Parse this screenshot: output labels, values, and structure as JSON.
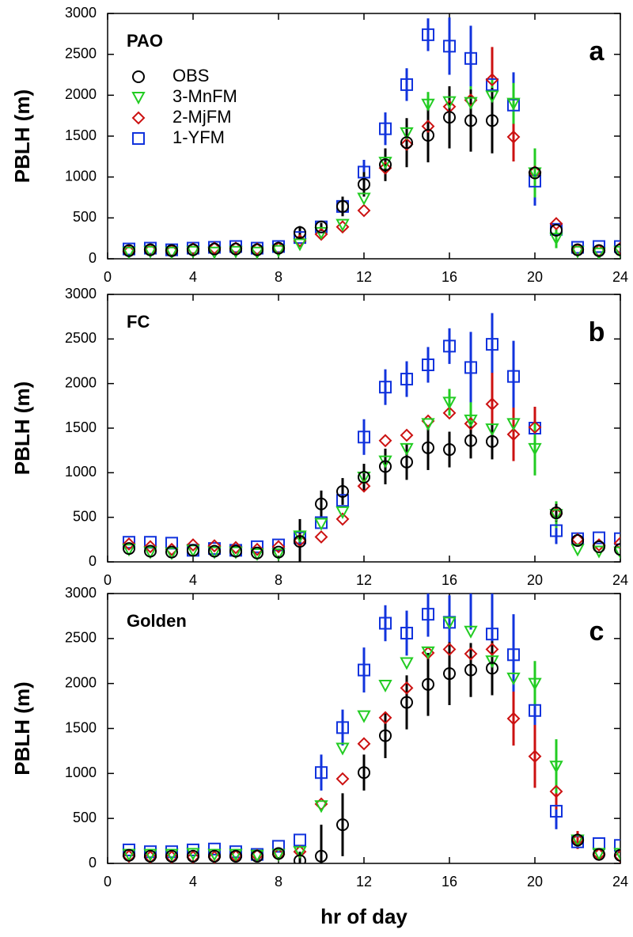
{
  "chart_data": [
    {
      "type": "scatter",
      "title": "PAO",
      "panel_label": "a",
      "y_label": "PBLH (m)",
      "legend": "upper left",
      "x": [
        1,
        2,
        3,
        4,
        5,
        6,
        7,
        8,
        9,
        10,
        11,
        12,
        13,
        14,
        15,
        16,
        17,
        18,
        19,
        20,
        21,
        22,
        23,
        24
      ],
      "xlim": [
        0,
        24
      ],
      "xticks": [
        0,
        4,
        8,
        12,
        16,
        20,
        24
      ],
      "ylim": [
        0,
        3000
      ],
      "yticks": [
        0,
        500,
        1000,
        1500,
        2000,
        2500,
        3000
      ],
      "series": [
        {
          "name": "OBS",
          "color": "#000000",
          "marker": "circle",
          "values": [
            100,
            110,
            100,
            110,
            120,
            120,
            110,
            130,
            320,
            390,
            640,
            910,
            1150,
            1420,
            1510,
            1730,
            1690,
            1690,
            null,
            1050,
            350,
            110,
            100,
            110
          ],
          "errors": [
            null,
            null,
            null,
            null,
            null,
            null,
            null,
            null,
            80,
            50,
            120,
            150,
            200,
            300,
            330,
            380,
            380,
            400,
            null,
            null,
            null,
            null,
            null,
            null
          ]
        },
        {
          "name": "3-MnFM",
          "color": "#22cc22",
          "marker": "triangle-down",
          "values": [
            80,
            90,
            80,
            90,
            80,
            90,
            80,
            100,
            180,
            320,
            420,
            740,
            1180,
            1540,
            1890,
            1920,
            1910,
            1990,
            1900,
            1050,
            250,
            90,
            70,
            90
          ],
          "errors": [
            null,
            null,
            null,
            null,
            null,
            null,
            null,
            null,
            null,
            null,
            null,
            null,
            null,
            null,
            150,
            150,
            200,
            200,
            250,
            300,
            120,
            null,
            null,
            null
          ]
        },
        {
          "name": "2-MjFM",
          "color": "#cc1111",
          "marker": "diamond",
          "values": [
            90,
            110,
            100,
            120,
            130,
            130,
            120,
            130,
            220,
            300,
            390,
            590,
            1110,
            1400,
            1620,
            1860,
            1940,
            2190,
            1490,
            1060,
            430,
            110,
            100,
            130
          ],
          "errors": [
            null,
            null,
            null,
            null,
            null,
            null,
            null,
            null,
            null,
            null,
            null,
            null,
            null,
            null,
            null,
            null,
            null,
            400,
            300,
            250,
            null,
            null,
            null,
            null
          ]
        },
        {
          "name": "1-YFM",
          "color": "#1133dd",
          "marker": "square",
          "values": [
            120,
            130,
            110,
            130,
            140,
            150,
            130,
            150,
            260,
            390,
            640,
            1060,
            1590,
            2130,
            2740,
            2600,
            2450,
            2130,
            1880,
            950,
            360,
            140,
            150,
            150
          ],
          "errors": [
            null,
            null,
            null,
            null,
            null,
            null,
            null,
            null,
            null,
            null,
            null,
            150,
            200,
            200,
            200,
            350,
            400,
            450,
            400,
            300,
            null,
            null,
            null,
            null
          ]
        }
      ]
    },
    {
      "type": "scatter",
      "title": "FC",
      "panel_label": "b",
      "y_label": "PBLH (m)",
      "x": [
        1,
        2,
        3,
        4,
        5,
        6,
        7,
        8,
        9,
        10,
        11,
        12,
        13,
        14,
        15,
        16,
        17,
        18,
        19,
        20,
        21,
        22,
        23,
        24
      ],
      "xlim": [
        0,
        24
      ],
      "xticks": [
        0,
        4,
        8,
        12,
        16,
        20,
        24
      ],
      "ylim": [
        0,
        3000
      ],
      "yticks": [
        0,
        500,
        1000,
        1500,
        2000,
        2500,
        3000
      ],
      "series": [
        {
          "color": "#000000",
          "marker": "circle",
          "values": [
            150,
            120,
            110,
            130,
            120,
            120,
            100,
            110,
            230,
            650,
            790,
            950,
            1070,
            1120,
            1280,
            1260,
            1360,
            1350,
            null,
            null,
            550,
            240,
            170,
            140
          ],
          "errors": [
            null,
            null,
            null,
            null,
            null,
            null,
            null,
            null,
            250,
            150,
            150,
            150,
            200,
            200,
            250,
            200,
            200,
            200,
            null,
            null,
            100,
            null,
            null,
            null
          ]
        },
        {
          "color": "#22cc22",
          "marker": "triangle-down",
          "values": [
            140,
            110,
            100,
            130,
            110,
            110,
            90,
            90,
            290,
            430,
            560,
            950,
            1130,
            1270,
            1550,
            1790,
            1590,
            1490,
            1550,
            1270,
            530,
            140,
            120,
            110
          ],
          "errors": [
            null,
            null,
            null,
            null,
            null,
            null,
            null,
            null,
            null,
            null,
            null,
            null,
            null,
            null,
            null,
            150,
            200,
            null,
            null,
            300,
            150,
            null,
            null,
            null
          ]
        },
        {
          "color": "#cc1111",
          "marker": "diamond",
          "values": [
            200,
            170,
            140,
            190,
            180,
            160,
            140,
            170,
            240,
            280,
            480,
            850,
            1360,
            1420,
            1580,
            1670,
            1550,
            1770,
            1430,
            1510,
            540,
            250,
            190,
            210
          ],
          "errors": [
            null,
            null,
            null,
            null,
            null,
            null,
            null,
            null,
            null,
            null,
            null,
            null,
            null,
            null,
            null,
            null,
            null,
            350,
            300,
            230,
            null,
            null,
            null,
            null
          ]
        },
        {
          "color": "#1133dd",
          "marker": "square",
          "values": [
            220,
            220,
            210,
            130,
            150,
            130,
            170,
            190,
            270,
            440,
            690,
            1400,
            1960,
            2050,
            2210,
            2420,
            2180,
            2440,
            2080,
            1500,
            350,
            260,
            270,
            260
          ],
          "errors": [
            null,
            null,
            null,
            null,
            null,
            null,
            null,
            null,
            null,
            null,
            null,
            200,
            200,
            200,
            200,
            200,
            400,
            350,
            400,
            null,
            150,
            null,
            null,
            null
          ]
        }
      ]
    },
    {
      "type": "scatter",
      "title": "Golden",
      "panel_label": "c",
      "y_label": "PBLH (m)",
      "x_label": "hr of day",
      "x": [
        1,
        2,
        3,
        4,
        5,
        6,
        7,
        8,
        9,
        10,
        11,
        12,
        13,
        14,
        15,
        16,
        17,
        18,
        19,
        20,
        21,
        22,
        23,
        24
      ],
      "xlim": [
        0,
        24
      ],
      "xticks": [
        0,
        4,
        8,
        12,
        16,
        20,
        24
      ],
      "ylim": [
        0,
        3000
      ],
      "yticks": [
        0,
        500,
        1000,
        1500,
        2000,
        2500,
        3000
      ],
      "series": [
        {
          "color": "#000000",
          "marker": "circle",
          "values": [
            90,
            80,
            80,
            80,
            80,
            80,
            80,
            110,
            30,
            80,
            430,
            1010,
            1420,
            1790,
            1990,
            2110,
            2150,
            2170,
            null,
            null,
            null,
            260,
            100,
            90
          ],
          "errors": [
            null,
            null,
            null,
            null,
            null,
            null,
            null,
            null,
            100,
            350,
            350,
            200,
            250,
            300,
            350,
            350,
            300,
            300,
            null,
            null,
            null,
            null,
            null,
            null
          ]
        },
        {
          "color": "#22cc22",
          "marker": "triangle-down",
          "values": [
            100,
            100,
            100,
            110,
            100,
            100,
            90,
            100,
            130,
            640,
            1280,
            1640,
            1980,
            2230,
            2350,
            2680,
            2580,
            2250,
            2060,
            2000,
            1080,
            260,
            110,
            110
          ],
          "errors": [
            null,
            null,
            null,
            null,
            null,
            null,
            null,
            null,
            null,
            null,
            null,
            null,
            null,
            null,
            null,
            null,
            null,
            null,
            null,
            250,
            300,
            null,
            null,
            null
          ]
        },
        {
          "color": "#cc1111",
          "marker": "diamond",
          "values": [
            80,
            70,
            70,
            70,
            70,
            80,
            90,
            100,
            130,
            660,
            940,
            1330,
            1620,
            1950,
            2340,
            2380,
            2330,
            2380,
            1610,
            1190,
            800,
            260,
            100,
            80
          ],
          "errors": [
            null,
            null,
            null,
            null,
            null,
            null,
            null,
            null,
            null,
            null,
            null,
            null,
            null,
            null,
            null,
            null,
            null,
            null,
            300,
            350,
            200,
            100,
            null,
            null
          ]
        },
        {
          "color": "#1133dd",
          "marker": "square",
          "values": [
            150,
            130,
            130,
            150,
            160,
            130,
            100,
            190,
            260,
            1010,
            1510,
            2150,
            2670,
            2560,
            2770,
            2680,
            3100,
            2550,
            2320,
            1700,
            580,
            240,
            220,
            200
          ],
          "errors": [
            null,
            null,
            null,
            null,
            null,
            null,
            null,
            null,
            null,
            200,
            200,
            250,
            200,
            250,
            250,
            300,
            500,
            450,
            450,
            300,
            200,
            null,
            null,
            null
          ]
        }
      ]
    }
  ]
}
